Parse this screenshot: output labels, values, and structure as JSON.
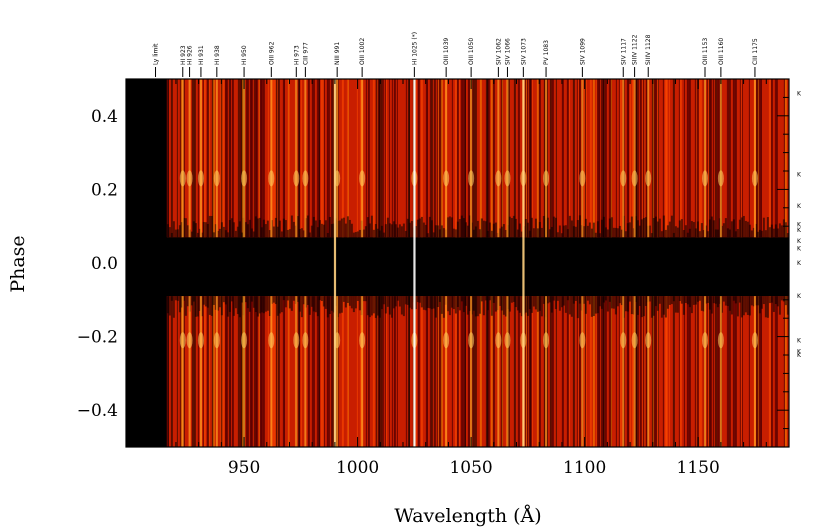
{
  "chart_data": {
    "type": "heatmap",
    "xlabel": "Wavelength (Å)",
    "ylabel": "Phase",
    "xlim": [
      898,
      1190
    ],
    "ylim": [
      -0.5,
      0.5
    ],
    "x_ticks": [
      950,
      1000,
      1050,
      1100,
      1150
    ],
    "x_tick_labels": [
      "950",
      "1000",
      "1050",
      "1100",
      "1150"
    ],
    "y_ticks": [
      -0.4,
      -0.2,
      0.0,
      0.2,
      0.4
    ],
    "y_tick_labels": [
      "−0.4",
      "−0.2",
      "0.0",
      "0.2",
      "0.4"
    ],
    "colormap": [
      "#000000",
      "#8a0000",
      "#d62a00",
      "#ff8a00",
      "#ffe070"
    ],
    "data_start_wavelength": 916,
    "dark_band_phase": [
      -0.09,
      0.07
    ],
    "line_ids": [
      {
        "label": "Ly limit",
        "wavelength": 911
      },
      {
        "label": "HI 923",
        "wavelength": 923
      },
      {
        "label": "HI 926",
        "wavelength": 926
      },
      {
        "label": "HI 931",
        "wavelength": 931
      },
      {
        "label": "HI 938",
        "wavelength": 938
      },
      {
        "label": "HI 950",
        "wavelength": 950
      },
      {
        "label": "OIII 962",
        "wavelength": 962
      },
      {
        "label": "HI 973",
        "wavelength": 973
      },
      {
        "label": "CIII 977",
        "wavelength": 977
      },
      {
        "label": "NIII 991",
        "wavelength": 991
      },
      {
        "label": "OIII 1002",
        "wavelength": 1002
      },
      {
        "label": "HI 1025 (*)",
        "wavelength": 1025
      },
      {
        "label": "OIII 1039",
        "wavelength": 1039
      },
      {
        "label": "OIII 1050",
        "wavelength": 1050
      },
      {
        "label": "SIV 1062",
        "wavelength": 1062
      },
      {
        "label": "SIV 1066",
        "wavelength": 1066
      },
      {
        "label": "SIV 1073",
        "wavelength": 1073
      },
      {
        "label": "PV 1083",
        "wavelength": 1083
      },
      {
        "label": "SIV 1099",
        "wavelength": 1099
      },
      {
        "label": "SIV 1117",
        "wavelength": 1117
      },
      {
        "label": "SIIIV 1122",
        "wavelength": 1122
      },
      {
        "label": "SIIIV 1128",
        "wavelength": 1128
      },
      {
        "label": "OIII 1153",
        "wavelength": 1153
      },
      {
        "label": "OIII 1160",
        "wavelength": 1160
      },
      {
        "label": "CIII 1175",
        "wavelength": 1175
      }
    ],
    "right_flags": [
      {
        "label": "K",
        "phase": 0.46
      },
      {
        "label": "K",
        "phase": 0.24
      },
      {
        "label": "K",
        "phase": 0.155
      },
      {
        "label": "K",
        "phase": 0.105
      },
      {
        "label": "K",
        "phase": 0.09
      },
      {
        "label": "K",
        "phase": 0.06
      },
      {
        "label": "K",
        "phase": 0.04
      },
      {
        "label": "K",
        "phase": 0.0
      },
      {
        "label": "K",
        "phase": -0.09
      },
      {
        "label": "K",
        "phase": -0.21
      },
      {
        "label": "K",
        "phase": -0.24
      },
      {
        "label": "K",
        "phase": -0.25
      }
    ]
  }
}
